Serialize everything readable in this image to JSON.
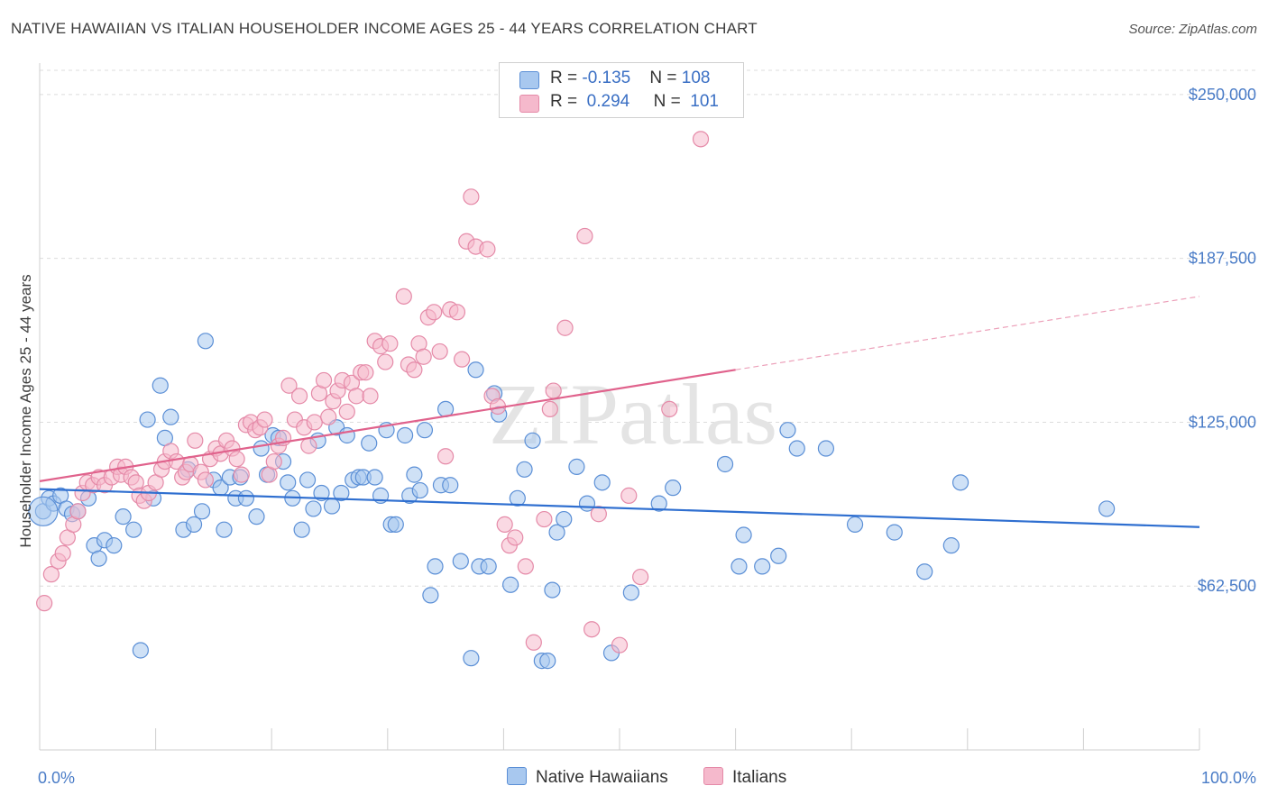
{
  "title": "NATIVE HAWAIIAN VS ITALIAN HOUSEHOLDER INCOME AGES 25 - 44 YEARS CORRELATION CHART",
  "source": "Source: ZipAtlas.com",
  "watermark": "ZIPatlas",
  "legend": {
    "rows": [
      {
        "r_label": "R = ",
        "r_value": "-0.135",
        "n_label": "N = ",
        "n_value": "108"
      },
      {
        "r_label": "R = ",
        "r_value": "0.294",
        "n_label": "N = ",
        "n_value": "101"
      }
    ]
  },
  "bottom_legend": {
    "items": [
      "Native Hawaiians",
      "Italians"
    ]
  },
  "colors": {
    "blue_fill": "#a8c8ef",
    "blue_stroke": "#5b8fd6",
    "blue_line": "#2f6fd0",
    "pink_fill": "#f5b9cc",
    "pink_stroke": "#e58aa8",
    "pink_line": "#e0628c"
  },
  "chart_data": {
    "type": "scatter",
    "xlabel": "",
    "ylabel": "Householder Income Ages 25 - 44 years",
    "xlim": [
      0,
      100
    ],
    "ylim": [
      0,
      262000
    ],
    "x_tick_labels": [
      "0.0%",
      "100.0%"
    ],
    "y_ticks": [
      62500,
      125000,
      187500,
      250000
    ],
    "y_tick_labels": [
      "$62,500",
      "$125,000",
      "$187,500",
      "$250,000"
    ],
    "grid": true,
    "series": [
      {
        "name": "Native Hawaiians",
        "trend": {
          "x": [
            0,
            100
          ],
          "y": [
            99500,
            85000
          ]
        },
        "points": [
          [
            0.3,
            91000
          ],
          [
            0.8,
            96000
          ],
          [
            1.2,
            94000
          ],
          [
            1.8,
            97000
          ],
          [
            2.3,
            92000
          ],
          [
            2.8,
            90000
          ],
          [
            3.3,
            91000
          ],
          [
            4.2,
            96000
          ],
          [
            4.7,
            78000
          ],
          [
            5.1,
            73000
          ],
          [
            5.6,
            80000
          ],
          [
            6.4,
            78000
          ],
          [
            7.2,
            89000
          ],
          [
            8.1,
            84000
          ],
          [
            8.7,
            38000
          ],
          [
            9.3,
            126000
          ],
          [
            9.8,
            96000
          ],
          [
            10.4,
            139000
          ],
          [
            10.8,
            119000
          ],
          [
            11.3,
            127000
          ],
          [
            12.4,
            84000
          ],
          [
            12.8,
            107000
          ],
          [
            13.3,
            86000
          ],
          [
            14.0,
            91000
          ],
          [
            14.3,
            156000
          ],
          [
            15.0,
            103000
          ],
          [
            15.6,
            100000
          ],
          [
            15.9,
            84000
          ],
          [
            16.4,
            104000
          ],
          [
            16.9,
            96000
          ],
          [
            17.3,
            104000
          ],
          [
            17.8,
            96000
          ],
          [
            18.7,
            89000
          ],
          [
            19.1,
            115000
          ],
          [
            19.6,
            105000
          ],
          [
            20.1,
            120000
          ],
          [
            20.6,
            119000
          ],
          [
            21.0,
            110000
          ],
          [
            21.4,
            102000
          ],
          [
            21.8,
            96000
          ],
          [
            22.6,
            84000
          ],
          [
            23.1,
            103000
          ],
          [
            23.6,
            92000
          ],
          [
            24.0,
            118000
          ],
          [
            24.3,
            98000
          ],
          [
            25.2,
            93000
          ],
          [
            25.6,
            123000
          ],
          [
            26.0,
            98000
          ],
          [
            26.5,
            120000
          ],
          [
            27.0,
            103000
          ],
          [
            27.5,
            104000
          ],
          [
            27.9,
            104000
          ],
          [
            28.4,
            117000
          ],
          [
            28.9,
            104000
          ],
          [
            29.4,
            97000
          ],
          [
            29.9,
            122000
          ],
          [
            30.3,
            86000
          ],
          [
            30.7,
            86000
          ],
          [
            31.5,
            120000
          ],
          [
            31.9,
            97000
          ],
          [
            32.3,
            105000
          ],
          [
            32.8,
            99000
          ],
          [
            33.2,
            122000
          ],
          [
            33.7,
            59000
          ],
          [
            34.1,
            70000
          ],
          [
            34.6,
            101000
          ],
          [
            35.0,
            130000
          ],
          [
            35.4,
            101000
          ],
          [
            36.3,
            72000
          ],
          [
            37.2,
            35000
          ],
          [
            37.6,
            145000
          ],
          [
            37.9,
            70000
          ],
          [
            38.7,
            70000
          ],
          [
            39.2,
            136000
          ],
          [
            39.6,
            128000
          ],
          [
            40.6,
            63000
          ],
          [
            41.2,
            96000
          ],
          [
            41.8,
            107000
          ],
          [
            42.5,
            118000
          ],
          [
            43.3,
            34000
          ],
          [
            43.8,
            34000
          ],
          [
            44.2,
            61000
          ],
          [
            44.6,
            83000
          ],
          [
            45.2,
            88000
          ],
          [
            46.3,
            108000
          ],
          [
            47.2,
            94000
          ],
          [
            48.5,
            102000
          ],
          [
            49.3,
            37000
          ],
          [
            51.0,
            60000
          ],
          [
            53.4,
            94000
          ],
          [
            54.6,
            100000
          ],
          [
            59.1,
            109000
          ],
          [
            60.3,
            70000
          ],
          [
            60.7,
            82000
          ],
          [
            62.3,
            70000
          ],
          [
            63.7,
            74000
          ],
          [
            64.5,
            122000
          ],
          [
            65.3,
            115000
          ],
          [
            67.8,
            115000
          ],
          [
            70.3,
            86000
          ],
          [
            73.7,
            83000
          ],
          [
            76.3,
            68000
          ],
          [
            78.6,
            78000
          ],
          [
            79.4,
            102000
          ],
          [
            92.0,
            92000
          ]
        ]
      },
      {
        "name": "Italians",
        "trend": {
          "x": [
            0,
            60
          ],
          "y": [
            102500,
            145000
          ]
        },
        "trend_extension": {
          "x": [
            60,
            100
          ],
          "y": [
            145000,
            173000
          ]
        },
        "points": [
          [
            0.4,
            56000
          ],
          [
            1.0,
            67000
          ],
          [
            1.6,
            72000
          ],
          [
            2.0,
            75000
          ],
          [
            2.4,
            81000
          ],
          [
            2.9,
            86000
          ],
          [
            3.3,
            91000
          ],
          [
            3.7,
            98000
          ],
          [
            4.1,
            102000
          ],
          [
            4.6,
            101000
          ],
          [
            5.1,
            104000
          ],
          [
            5.6,
            101000
          ],
          [
            6.2,
            104000
          ],
          [
            6.7,
            108000
          ],
          [
            7.0,
            105000
          ],
          [
            7.4,
            108000
          ],
          [
            7.9,
            104000
          ],
          [
            8.3,
            102000
          ],
          [
            8.6,
            97000
          ],
          [
            9.0,
            95000
          ],
          [
            9.4,
            98000
          ],
          [
            10.0,
            102000
          ],
          [
            10.5,
            107000
          ],
          [
            10.8,
            110000
          ],
          [
            11.3,
            114000
          ],
          [
            11.8,
            110000
          ],
          [
            12.3,
            104000
          ],
          [
            12.6,
            106000
          ],
          [
            13.0,
            109000
          ],
          [
            13.4,
            118000
          ],
          [
            13.9,
            106000
          ],
          [
            14.3,
            103000
          ],
          [
            14.7,
            111000
          ],
          [
            15.2,
            115000
          ],
          [
            15.6,
            113000
          ],
          [
            16.1,
            118000
          ],
          [
            16.6,
            115000
          ],
          [
            17.0,
            111000
          ],
          [
            17.4,
            105000
          ],
          [
            17.8,
            124000
          ],
          [
            18.2,
            125000
          ],
          [
            18.6,
            122000
          ],
          [
            19.0,
            123000
          ],
          [
            19.4,
            126000
          ],
          [
            19.8,
            105000
          ],
          [
            20.2,
            110000
          ],
          [
            20.6,
            116000
          ],
          [
            21.0,
            119000
          ],
          [
            21.5,
            139000
          ],
          [
            22.0,
            126000
          ],
          [
            22.4,
            135000
          ],
          [
            22.8,
            123000
          ],
          [
            23.2,
            116000
          ],
          [
            23.7,
            125000
          ],
          [
            24.1,
            136000
          ],
          [
            24.5,
            141000
          ],
          [
            24.9,
            127000
          ],
          [
            25.3,
            133000
          ],
          [
            25.7,
            137000
          ],
          [
            26.1,
            141000
          ],
          [
            26.5,
            129000
          ],
          [
            26.9,
            140000
          ],
          [
            27.3,
            135000
          ],
          [
            27.7,
            144000
          ],
          [
            28.1,
            144000
          ],
          [
            28.5,
            135000
          ],
          [
            28.9,
            156000
          ],
          [
            29.4,
            154000
          ],
          [
            29.8,
            148000
          ],
          [
            30.2,
            155000
          ],
          [
            31.4,
            173000
          ],
          [
            31.8,
            147000
          ],
          [
            32.3,
            145000
          ],
          [
            32.7,
            155000
          ],
          [
            33.1,
            150000
          ],
          [
            33.5,
            165000
          ],
          [
            34.0,
            167000
          ],
          [
            34.5,
            152000
          ],
          [
            35.0,
            112000
          ],
          [
            35.4,
            168000
          ],
          [
            36.0,
            167000
          ],
          [
            36.4,
            149000
          ],
          [
            36.8,
            194000
          ],
          [
            37.2,
            211000
          ],
          [
            37.6,
            192000
          ],
          [
            38.6,
            191000
          ],
          [
            39.0,
            135000
          ],
          [
            39.5,
            131000
          ],
          [
            40.1,
            86000
          ],
          [
            40.5,
            78000
          ],
          [
            41.0,
            81000
          ],
          [
            41.9,
            70000
          ],
          [
            42.6,
            41000
          ],
          [
            43.5,
            88000
          ],
          [
            44.0,
            130000
          ],
          [
            44.3,
            137000
          ],
          [
            45.3,
            161000
          ],
          [
            47.0,
            196000
          ],
          [
            47.6,
            46000
          ],
          [
            48.2,
            90000
          ],
          [
            50.0,
            40000
          ],
          [
            50.8,
            97000
          ],
          [
            51.8,
            66000
          ],
          [
            54.3,
            130000
          ],
          [
            57.0,
            233000
          ]
        ]
      }
    ]
  }
}
